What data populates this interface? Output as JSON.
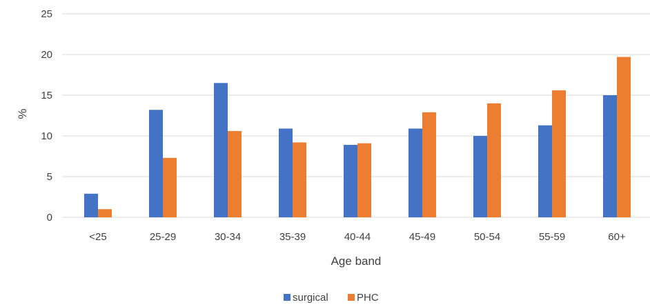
{
  "chart_data": {
    "type": "bar",
    "title": "",
    "xlabel": "Age band",
    "ylabel": "%",
    "ylim": [
      0,
      25
    ],
    "yticks": [
      0,
      5,
      10,
      15,
      20,
      25
    ],
    "grid": true,
    "legend_position": "bottom",
    "categories": [
      "<25",
      "25-29",
      "30-34",
      "35-39",
      "40-44",
      "45-49",
      "50-54",
      "55-59",
      "60+"
    ],
    "series": [
      {
        "name": "surgical",
        "color": "#4472C4",
        "values": [
          2.9,
          13.2,
          16.5,
          10.9,
          8.9,
          10.9,
          10.0,
          11.3,
          15.0
        ]
      },
      {
        "name": "PHC",
        "color": "#ED7D31",
        "values": [
          1.0,
          7.3,
          10.6,
          9.2,
          9.1,
          12.9,
          14.0,
          15.6,
          19.7
        ]
      }
    ]
  }
}
